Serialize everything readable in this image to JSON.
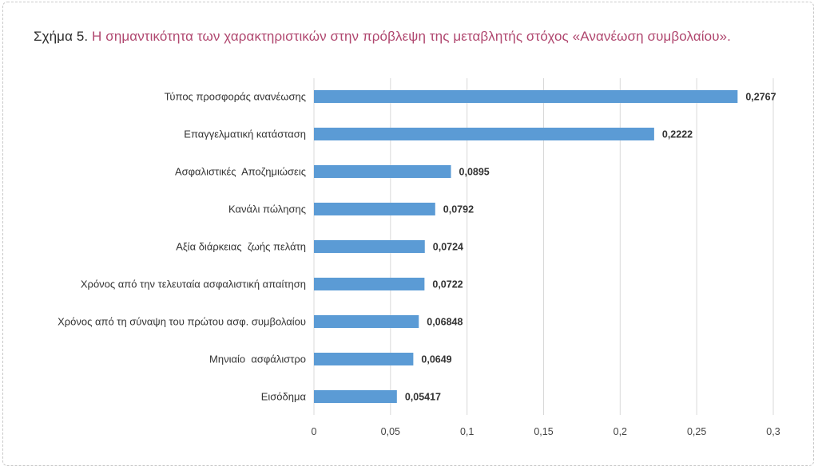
{
  "figure": {
    "caption_prefix": "Σχήμα 5.",
    "caption_title": " Η σημαντικότητα των χαρακτηριστικών στην πρόβλεψη της μεταβλητής στόχος «Ανανέωση συμβολαίου».",
    "bar_color": "#5b9bd5",
    "caption_title_color": "#b0476f"
  },
  "chart_data": {
    "type": "bar",
    "orientation": "horizontal",
    "categories": [
      "Τύπος προσφοράς ανανέωσης",
      "Επαγγελματική κατάσταση",
      "Ασφαλιστικές  Αποζημιώσεις",
      "Κανάλι πώλησης",
      "Αξία διάρκειας  ζωής πελάτη",
      "Χρόνος από την τελευταία ασφαλιστική απαίτηση",
      "Χρόνος από τη σύναψη του πρώτου ασφ. συμβολαίου",
      "Μηνιαίο  ασφάλιστρο",
      "Εισόδημα"
    ],
    "values": [
      0.2767,
      0.2222,
      0.0895,
      0.0792,
      0.0724,
      0.0722,
      0.06848,
      0.0649,
      0.05417
    ],
    "value_labels": [
      "0,2767",
      "0,2222",
      "0,0895",
      "0,0792",
      "0,0724",
      "0,0722",
      "0,06848",
      "0,0649",
      "0,05417"
    ],
    "xlim": [
      0,
      0.3
    ],
    "xticks": [
      0,
      0.05,
      0.1,
      0.15,
      0.2,
      0.25,
      0.3
    ],
    "xtick_labels": [
      "0",
      "0,05",
      "0,1",
      "0,15",
      "0,2",
      "0,25",
      "0,3"
    ],
    "grid": true,
    "legend": "none"
  }
}
